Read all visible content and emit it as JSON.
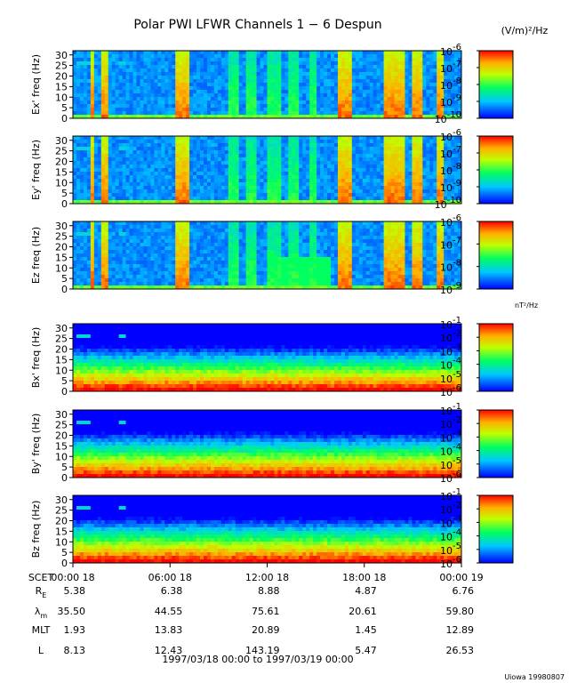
{
  "chart_data": {
    "type": "heatmap",
    "title": "Polar PWI LFWR Channels 1 − 6 Despun",
    "credit": "Uiowa 19980807",
    "units": {
      "electric": "(V/m)²/Hz",
      "magnetic": "nT²/Hz"
    },
    "panels": [
      {
        "ylabel": "Ex' freq (Hz)",
        "ylim": [
          0,
          32
        ],
        "yticks": [
          "0",
          "5",
          "10",
          "15",
          "20",
          "25",
          "30"
        ],
        "colorbar": {
          "exp_min": -10,
          "exp_max": -6,
          "tick_exps": [
            "-6",
            "-7",
            "-8",
            "-9",
            "-10"
          ]
        }
      },
      {
        "ylabel": "Ey' freq (Hz)",
        "ylim": [
          0,
          32
        ],
        "yticks": [
          "0",
          "5",
          "10",
          "15",
          "20",
          "25",
          "30"
        ],
        "colorbar": {
          "exp_min": -10,
          "exp_max": -6,
          "tick_exps": [
            "-6",
            "-7",
            "-8",
            "-9",
            "-10"
          ]
        }
      },
      {
        "ylabel": "Ez freq (Hz)",
        "ylim": [
          0,
          32
        ],
        "yticks": [
          "0",
          "5",
          "10",
          "15",
          "20",
          "25",
          "30"
        ],
        "colorbar": {
          "exp_min": -9,
          "exp_max": -6,
          "tick_exps": [
            "-6",
            "-7",
            "-8",
            "-9"
          ]
        }
      },
      {
        "ylabel": "Bx' freq (Hz)",
        "ylim": [
          0,
          32
        ],
        "yticks": [
          "0",
          "5",
          "10",
          "15",
          "20",
          "25",
          "30"
        ],
        "colorbar": {
          "exp_min": -6,
          "exp_max": -1,
          "tick_exps": [
            "-1",
            "-2",
            "-3",
            "-4",
            "-5",
            "-6"
          ]
        }
      },
      {
        "ylabel": "By' freq (Hz)",
        "ylim": [
          0,
          32
        ],
        "yticks": [
          "0",
          "5",
          "10",
          "15",
          "20",
          "25",
          "30"
        ],
        "colorbar": {
          "exp_min": -6,
          "exp_max": -1,
          "tick_exps": [
            "-1",
            "-2",
            "-3",
            "-4",
            "-5",
            "-6"
          ]
        }
      },
      {
        "ylabel": "Bz freq (Hz)",
        "ylim": [
          0,
          32
        ],
        "yticks": [
          "0",
          "5",
          "10",
          "15",
          "20",
          "25",
          "30"
        ],
        "colorbar": {
          "exp_min": -6,
          "exp_max": -1,
          "tick_exps": [
            "-1",
            "-2",
            "-3",
            "-4",
            "-5",
            "-6"
          ]
        }
      }
    ],
    "x_range_hours": [
      0,
      24
    ],
    "x_tick_hours": [
      0,
      6,
      12,
      18,
      24
    ],
    "x_ticks": [
      "00:00 18",
      "06:00 18",
      "12:00 18",
      "18:00 18",
      "00:00 19"
    ],
    "ephemeris": [
      {
        "label": "SCET",
        "values": []
      },
      {
        "label": "R",
        "sub": "E",
        "values": [
          "5.38",
          "6.38",
          "8.88",
          "4.87",
          "6.76"
        ]
      },
      {
        "label": "λ",
        "sub": "m",
        "values": [
          "35.50",
          "44.55",
          "75.61",
          "20.61",
          "59.80"
        ]
      },
      {
        "label": "MLT",
        "sub": "",
        "values": [
          "1.93",
          "13.83",
          "20.89",
          "1.45",
          "12.89"
        ]
      },
      {
        "label": "L",
        "sub": "",
        "values": [
          "8.13",
          "12.43",
          "143.19",
          "5.47",
          "26.53"
        ]
      }
    ],
    "date_range": "1997/03/18 00:00 to 1997/03/19 00:00",
    "electric_bursts_hours": [
      [
        1.0,
        1.4
      ],
      [
        1.7,
        2.1
      ],
      [
        6.3,
        7.3
      ],
      [
        16.3,
        17.2
      ],
      [
        19.3,
        20.6
      ],
      [
        20.9,
        21.5
      ],
      [
        22.4,
        23.0
      ]
    ],
    "electric_moderate_hours": [
      [
        9.5,
        10.2
      ],
      [
        10.8,
        11.4
      ],
      [
        12.1,
        12.9
      ],
      [
        13.4,
        14.0
      ],
      [
        14.6,
        15.0
      ]
    ],
    "calibration_hours": [
      [
        0.2,
        1.0
      ],
      [
        2.9,
        3.2
      ]
    ]
  }
}
